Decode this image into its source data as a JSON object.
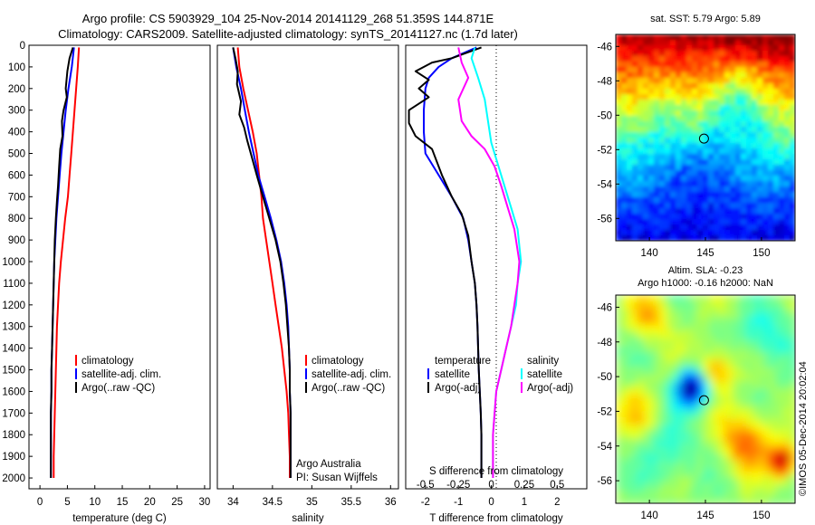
{
  "header": {
    "line1": "Argo profile: CS 5903929_104 25-Nov-2014 20141129_268 51.359S 144.871E",
    "line2": "Climatology: CARS2009. Satellite-adjusted climatology: synTS_20141127.nc (1.7d later)"
  },
  "colors": {
    "climatology": "#ff0000",
    "satellite": "#0000ff",
    "argo": "#000000",
    "salinity_satellite": "#00ffff",
    "salinity_argo": "#ff00ff"
  },
  "chart_data": [
    {
      "type": "line",
      "id": "temperature",
      "xlabel": "temperature (deg C)",
      "xlim": [
        -2,
        31
      ],
      "ylim": [
        0,
        2050
      ],
      "xticks": [
        0,
        5,
        10,
        15,
        20,
        25,
        30
      ],
      "yticks": [
        0,
        100,
        200,
        300,
        400,
        500,
        600,
        700,
        800,
        900,
        1000,
        1100,
        1200,
        1300,
        1400,
        1500,
        1600,
        1700,
        1800,
        1900,
        2000
      ],
      "legend": [
        "climatology",
        "satellite-adj. clim.",
        "Argo(..raw -QC)"
      ],
      "series": [
        {
          "name": "climatology",
          "color": "#ff0000",
          "points": [
            [
              7.1,
              10
            ],
            [
              6.9,
              100
            ],
            [
              6.6,
              200
            ],
            [
              6.3,
              300
            ],
            [
              6.0,
              400
            ],
            [
              5.7,
              500
            ],
            [
              5.4,
              600
            ],
            [
              5.1,
              700
            ],
            [
              4.6,
              800
            ],
            [
              4.2,
              900
            ],
            [
              3.8,
              1000
            ],
            [
              3.5,
              1100
            ],
            [
              3.3,
              1200
            ],
            [
              3.1,
              1300
            ],
            [
              3.0,
              1400
            ],
            [
              2.9,
              1500
            ],
            [
              2.8,
              1600
            ],
            [
              2.7,
              1700
            ],
            [
              2.6,
              1800
            ],
            [
              2.5,
              1900
            ],
            [
              2.5,
              2000
            ]
          ]
        },
        {
          "name": "satellite-adj. clim.",
          "color": "#0000ff",
          "points": [
            [
              6.2,
              10
            ],
            [
              5.8,
              100
            ],
            [
              5.2,
              200
            ],
            [
              4.7,
              300
            ],
            [
              4.3,
              400
            ],
            [
              3.9,
              500
            ],
            [
              3.6,
              600
            ],
            [
              3.3,
              700
            ],
            [
              3.0,
              800
            ],
            [
              2.8,
              900
            ],
            [
              2.6,
              1000
            ],
            [
              2.5,
              1100
            ],
            [
              2.4,
              1200
            ],
            [
              2.3,
              1300
            ],
            [
              2.2,
              1400
            ],
            [
              2.1,
              1500
            ],
            [
              2.1,
              1600
            ],
            [
              2.0,
              1700
            ],
            [
              2.0,
              1800
            ],
            [
              2.0,
              1900
            ],
            [
              2.0,
              2000
            ]
          ]
        },
        {
          "name": "Argo(..raw -QC)",
          "color": "#000000",
          "points": [
            [
              6.0,
              10
            ],
            [
              5.4,
              60
            ],
            [
              5.0,
              120
            ],
            [
              4.7,
              200
            ],
            [
              4.9,
              240
            ],
            [
              4.3,
              300
            ],
            [
              4.0,
              350
            ],
            [
              4.1,
              420
            ],
            [
              3.7,
              480
            ],
            [
              3.5,
              560
            ],
            [
              3.3,
              650
            ],
            [
              3.1,
              720
            ],
            [
              2.9,
              800
            ],
            [
              2.7,
              900
            ],
            [
              2.6,
              1000
            ],
            [
              2.5,
              1100
            ],
            [
              2.4,
              1200
            ],
            [
              2.3,
              1300
            ],
            [
              2.2,
              1400
            ],
            [
              2.1,
              1500
            ],
            [
              2.1,
              1600
            ],
            [
              2.0,
              1700
            ],
            [
              2.0,
              1800
            ],
            [
              2.0,
              1900
            ],
            [
              2.0,
              2000
            ]
          ]
        }
      ]
    },
    {
      "type": "line",
      "id": "salinity",
      "xlabel": "salinity",
      "xlim": [
        33.8,
        36.1
      ],
      "ylim": [
        0,
        2050
      ],
      "xticks": [
        34,
        34.5,
        35,
        35.5,
        36
      ],
      "legend": [
        "climatology",
        "satellite-adj. clim.",
        "Argo(..raw -QC)"
      ],
      "annotation": [
        "Argo Australia",
        "PI: Susan Wijffels"
      ],
      "series": [
        {
          "name": "climatology",
          "color": "#ff0000",
          "points": [
            [
              34.06,
              10
            ],
            [
              34.08,
              100
            ],
            [
              34.13,
              200
            ],
            [
              34.19,
              300
            ],
            [
              34.25,
              400
            ],
            [
              34.3,
              500
            ],
            [
              34.33,
              600
            ],
            [
              34.36,
              700
            ],
            [
              34.38,
              800
            ],
            [
              34.42,
              900
            ],
            [
              34.46,
              1000
            ],
            [
              34.5,
              1100
            ],
            [
              34.54,
              1200
            ],
            [
              34.58,
              1300
            ],
            [
              34.62,
              1400
            ],
            [
              34.65,
              1500
            ],
            [
              34.68,
              1600
            ],
            [
              34.7,
              1700
            ],
            [
              34.71,
              1800
            ],
            [
              34.72,
              1900
            ],
            [
              34.72,
              2000
            ]
          ]
        },
        {
          "name": "satellite-adj. clim.",
          "color": "#0000ff",
          "points": [
            [
              34.0,
              10
            ],
            [
              34.04,
              100
            ],
            [
              34.1,
              200
            ],
            [
              34.15,
              300
            ],
            [
              34.2,
              400
            ],
            [
              34.26,
              500
            ],
            [
              34.32,
              600
            ],
            [
              34.4,
              700
            ],
            [
              34.48,
              800
            ],
            [
              34.55,
              900
            ],
            [
              34.61,
              1000
            ],
            [
              34.65,
              1100
            ],
            [
              34.68,
              1200
            ],
            [
              34.7,
              1300
            ],
            [
              34.71,
              1400
            ],
            [
              34.72,
              1500
            ],
            [
              34.72,
              1600
            ],
            [
              34.73,
              1700
            ],
            [
              34.73,
              1800
            ],
            [
              34.73,
              1900
            ],
            [
              34.73,
              2000
            ]
          ]
        },
        {
          "name": "Argo(..raw -QC)",
          "color": "#000000",
          "points": [
            [
              34.0,
              10
            ],
            [
              34.03,
              60
            ],
            [
              34.06,
              120
            ],
            [
              34.05,
              180
            ],
            [
              34.1,
              260
            ],
            [
              34.08,
              320
            ],
            [
              34.14,
              380
            ],
            [
              34.18,
              440
            ],
            [
              34.24,
              520
            ],
            [
              34.3,
              600
            ],
            [
              34.38,
              700
            ],
            [
              34.46,
              800
            ],
            [
              34.54,
              900
            ],
            [
              34.6,
              1000
            ],
            [
              34.64,
              1100
            ],
            [
              34.67,
              1200
            ],
            [
              34.69,
              1300
            ],
            [
              34.71,
              1400
            ],
            [
              34.72,
              1500
            ],
            [
              34.72,
              1600
            ],
            [
              34.73,
              1700
            ],
            [
              34.73,
              1800
            ],
            [
              34.73,
              1900
            ],
            [
              34.73,
              2000
            ]
          ]
        }
      ]
    },
    {
      "type": "line",
      "id": "differences",
      "xlabel": "T difference from climatology",
      "top_label": "S difference from climatology",
      "xlim": [
        -2.6,
        2.9
      ],
      "ylim": [
        0,
        2050
      ],
      "xticks": [
        -2,
        -1,
        0,
        1,
        2
      ],
      "top_ticks": [
        "-0.5",
        "-0.25",
        "0",
        "0.25",
        "0.5"
      ],
      "top_tick_values": [
        -2,
        -1,
        0,
        1,
        2
      ],
      "zero_line": "dotted",
      "legend_left": {
        "title": "temperature",
        "items": [
          "satellite",
          "Argo(-adj)"
        ]
      },
      "legend_right": {
        "title": "salinity",
        "items": [
          "satellite",
          "Argo(-adj)"
        ]
      },
      "series": [
        {
          "name": "T satellite",
          "color": "#0000ff",
          "points": [
            [
              -0.45,
              10
            ],
            [
              -0.9,
              40
            ],
            [
              -1.2,
              60
            ],
            [
              -1.6,
              100
            ],
            [
              -1.9,
              150
            ],
            [
              -2.0,
              200
            ],
            [
              -2.05,
              300
            ],
            [
              -2.05,
              400
            ],
            [
              -2.0,
              500
            ],
            [
              -1.6,
              600
            ],
            [
              -1.2,
              700
            ],
            [
              -0.85,
              800
            ],
            [
              -0.7,
              900
            ],
            [
              -0.6,
              1000
            ],
            [
              -0.5,
              1100
            ],
            [
              -0.45,
              1200
            ],
            [
              -0.42,
              1300
            ],
            [
              -0.4,
              1400
            ],
            [
              -0.38,
              1500
            ],
            [
              -0.35,
              1600
            ],
            [
              -0.32,
              1700
            ],
            [
              -0.3,
              1800
            ],
            [
              -0.3,
              1900
            ],
            [
              -0.3,
              2000
            ]
          ]
        },
        {
          "name": "T Argo(-adj)",
          "color": "#000000",
          "points": [
            [
              -0.3,
              10
            ],
            [
              -1.2,
              60
            ],
            [
              -1.8,
              80
            ],
            [
              -2.3,
              120
            ],
            [
              -1.9,
              160
            ],
            [
              -2.2,
              200
            ],
            [
              -1.9,
              240
            ],
            [
              -2.5,
              300
            ],
            [
              -2.5,
              360
            ],
            [
              -2.3,
              420
            ],
            [
              -1.8,
              480
            ],
            [
              -1.5,
              600
            ],
            [
              -1.2,
              700
            ],
            [
              -0.9,
              780
            ],
            [
              -0.7,
              880
            ],
            [
              -0.6,
              1000
            ],
            [
              -0.5,
              1100
            ],
            [
              -0.45,
              1200
            ],
            [
              -0.42,
              1300
            ],
            [
              -0.4,
              1400
            ],
            [
              -0.38,
              1500
            ],
            [
              -0.35,
              1600
            ],
            [
              -0.32,
              1700
            ],
            [
              -0.3,
              1800
            ],
            [
              -0.3,
              1900
            ],
            [
              -0.3,
              2000
            ]
          ]
        },
        {
          "name": "S satellite",
          "color": "#00ffff",
          "points": [
            [
              -0.5,
              10
            ],
            [
              -0.6,
              60
            ],
            [
              -0.4,
              150
            ],
            [
              -0.2,
              250
            ],
            [
              -0.1,
              350
            ],
            [
              0.0,
              450
            ],
            [
              0.2,
              550
            ],
            [
              0.4,
              650
            ],
            [
              0.6,
              750
            ],
            [
              0.8,
              850
            ],
            [
              0.9,
              1000
            ],
            [
              0.8,
              1100
            ],
            [
              0.75,
              1200
            ],
            [
              0.6,
              1300
            ],
            [
              0.45,
              1400
            ],
            [
              0.3,
              1500
            ],
            [
              0.15,
              1600
            ],
            [
              0.1,
              1700
            ],
            [
              0.05,
              1800
            ],
            [
              0.05,
              1900
            ],
            [
              0.05,
              2000
            ]
          ]
        },
        {
          "name": "S Argo(-adj)",
          "color": "#ff00ff",
          "points": [
            [
              -1.0,
              10
            ],
            [
              -0.9,
              80
            ],
            [
              -0.7,
              150
            ],
            [
              -1.0,
              250
            ],
            [
              -0.9,
              350
            ],
            [
              -0.6,
              420
            ],
            [
              -0.2,
              480
            ],
            [
              0.1,
              560
            ],
            [
              0.3,
              650
            ],
            [
              0.5,
              750
            ],
            [
              0.7,
              850
            ],
            [
              0.85,
              1000
            ],
            [
              0.8,
              1100
            ],
            [
              0.7,
              1200
            ],
            [
              0.6,
              1300
            ],
            [
              0.45,
              1400
            ],
            [
              0.3,
              1500
            ],
            [
              0.15,
              1600
            ],
            [
              0.1,
              1700
            ],
            [
              0.05,
              1800
            ],
            [
              0.05,
              1900
            ],
            [
              0.05,
              2000
            ]
          ]
        }
      ]
    },
    {
      "type": "heatmap",
      "id": "sst-map",
      "title": "sat. SST: 5.79 Argo: 5.89",
      "xlim": [
        137,
        153
      ],
      "ylim": [
        -57.3,
        -45.3
      ],
      "xticks": [
        140,
        145,
        150
      ],
      "yticks": [
        -46,
        -48,
        -50,
        -52,
        -54,
        -56
      ],
      "marker": [
        144.871,
        -51.359
      ]
    },
    {
      "type": "heatmap",
      "id": "sla-map",
      "title_line1": "Altim. SLA: -0.23",
      "title_line2": "Argo h1000: -0.16 h2000: NaN",
      "xlim": [
        137,
        153
      ],
      "ylim": [
        -57.3,
        -45.3
      ],
      "xticks": [
        140,
        145,
        150
      ],
      "yticks": [
        -46,
        -48,
        -50,
        -52,
        -54,
        -56
      ],
      "marker": [
        144.871,
        -51.359
      ],
      "side_text": "©IMOS 05-Dec-2014 20:02:04"
    }
  ]
}
